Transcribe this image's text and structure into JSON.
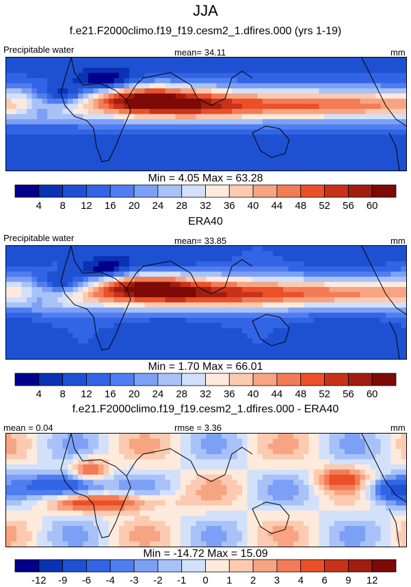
{
  "title": "JJA",
  "chart_data": [
    {
      "type": "heatmap",
      "title": "f.e21.F2000climo.f19_f19.cesm2_1.dfires.000 (yrs 1-19)",
      "left_label": "Precipitable water",
      "center_label": "mean=  34.11",
      "right_label": "mm",
      "stats": "Min =   4.05 Max =  63.28",
      "min": 4.05,
      "max": 63.28,
      "mean": 34.11,
      "colorbar_ticks": [
        "4",
        "8",
        "12",
        "16",
        "20",
        "24",
        "28",
        "32",
        "36",
        "40",
        "44",
        "48",
        "52",
        "56",
        "60"
      ],
      "colors": [
        "#00008b",
        "#0a32b4",
        "#1e50d2",
        "#3264e6",
        "#507ef0",
        "#7ca0f5",
        "#a8c2f8",
        "#d2e0fa",
        "#fdeadc",
        "#fbcab0",
        "#f7a482",
        "#f27c56",
        "#eb5028",
        "#c8321a",
        "#a01e10",
        "#7d0a05"
      ]
    },
    {
      "type": "heatmap",
      "title": "ERA40",
      "left_label": "Precipitable water",
      "center_label": "mean=  33.85",
      "right_label": "mm",
      "stats": "Min =   1.70 Max =  66.01",
      "min": 1.7,
      "max": 66.01,
      "mean": 33.85,
      "colorbar_ticks": [
        "4",
        "8",
        "12",
        "16",
        "20",
        "24",
        "28",
        "32",
        "36",
        "40",
        "44",
        "48",
        "52",
        "56",
        "60"
      ],
      "colors": [
        "#00008b",
        "#0a32b4",
        "#1e50d2",
        "#3264e6",
        "#507ef0",
        "#7ca0f5",
        "#a8c2f8",
        "#d2e0fa",
        "#fdeadc",
        "#fbcab0",
        "#f7a482",
        "#f27c56",
        "#eb5028",
        "#c8321a",
        "#a01e10",
        "#7d0a05"
      ]
    },
    {
      "type": "heatmap",
      "title": "f.e21.F2000climo.f19_f19.cesm2_1.dfires.000 - ERA40",
      "left_label": "mean =   0.04",
      "center_label": "rmse =   3.36",
      "right_label": "mm",
      "stats": "Min = -14.72 Max =  15.09",
      "min": -14.72,
      "max": 15.09,
      "mean": 0.04,
      "rmse": 3.36,
      "colorbar_ticks": [
        "-12",
        "-9",
        "-6",
        "-4",
        "-3",
        "-2",
        "-1",
        "0",
        "1",
        "2",
        "3",
        "4",
        "6",
        "9",
        "12"
      ],
      "colors": [
        "#00008b",
        "#0a32b4",
        "#1e50d2",
        "#3264e6",
        "#507ef0",
        "#7ca0f5",
        "#a8c2f8",
        "#d2e0fa",
        "#fdeadc",
        "#fbcab0",
        "#f7a482",
        "#f27c56",
        "#eb5028",
        "#c8321a",
        "#a01e10",
        "#7d0a05"
      ]
    }
  ]
}
